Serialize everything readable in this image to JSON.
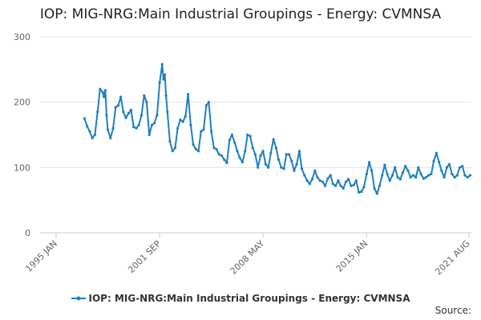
{
  "title": "IOP: MIG-NRG:Main Industrial Groupings - Energy: CVMNSA",
  "source_label": "Source:",
  "colors": {
    "series": "#1f7fbf",
    "grid": "#e6e6e6",
    "axis_text": "#666666"
  },
  "chart_data": {
    "type": "line",
    "title": "IOP: MIG-NRG:Main Industrial Groupings - Energy: CVMNSA",
    "xlabel": "",
    "ylabel": "",
    "ylim": [
      0,
      300
    ],
    "xlim": [
      1995.0,
      2021.75
    ],
    "y_ticks": [
      0,
      100,
      200,
      300
    ],
    "x_ticks": [
      {
        "value": 1995.0,
        "label": "1995 JAN"
      },
      {
        "value": 2001.67,
        "label": "2001 SEP"
      },
      {
        "value": 2008.33,
        "label": "2008 MAY"
      },
      {
        "value": 2015.0,
        "label": "2015 JAN"
      },
      {
        "value": 2021.58,
        "label": "2021 AUG"
      }
    ],
    "grid": true,
    "legend_position": "bottom",
    "series": [
      {
        "name": "IOP: MIG-NRG:Main Industrial Groupings - Energy: CVMNSA",
        "x": [
          1996.83,
          1997.0,
          1997.17,
          1997.33,
          1997.5,
          1997.67,
          1997.83,
          1998.0,
          1998.08,
          1998.17,
          1998.25,
          1998.33,
          1998.5,
          1998.67,
          1998.83,
          1999.0,
          1999.17,
          1999.33,
          1999.5,
          1999.67,
          1999.83,
          2000.0,
          2000.17,
          2000.33,
          2000.5,
          2000.67,
          2000.83,
          2001.0,
          2001.17,
          2001.33,
          2001.5,
          2001.67,
          2001.83,
          2001.92,
          2002.0,
          2002.08,
          2002.17,
          2002.33,
          2002.5,
          2002.67,
          2002.83,
          2003.0,
          2003.17,
          2003.33,
          2003.5,
          2003.67,
          2003.83,
          2004.0,
          2004.17,
          2004.33,
          2004.5,
          2004.67,
          2004.83,
          2005.0,
          2005.17,
          2005.33,
          2005.5,
          2005.67,
          2005.83,
          2006.0,
          2006.17,
          2006.33,
          2006.5,
          2006.67,
          2006.83,
          2007.0,
          2007.17,
          2007.33,
          2007.5,
          2007.67,
          2007.83,
          2008.0,
          2008.17,
          2008.33,
          2008.5,
          2008.67,
          2008.83,
          2009.0,
          2009.17,
          2009.33,
          2009.5,
          2009.67,
          2009.83,
          2010.0,
          2010.17,
          2010.33,
          2010.5,
          2010.67,
          2010.83,
          2011.0,
          2011.17,
          2011.33,
          2011.5,
          2011.67,
          2011.83,
          2012.0,
          2012.17,
          2012.33,
          2012.5,
          2012.67,
          2012.83,
          2013.0,
          2013.17,
          2013.33,
          2013.5,
          2013.67,
          2013.83,
          2014.0,
          2014.17,
          2014.33,
          2014.5,
          2014.67,
          2014.83,
          2015.0,
          2015.17,
          2015.33,
          2015.5,
          2015.67,
          2015.83,
          2016.0,
          2016.17,
          2016.33,
          2016.5,
          2016.67,
          2016.83,
          2017.0,
          2017.17,
          2017.33,
          2017.5,
          2017.67,
          2017.83,
          2018.0,
          2018.17,
          2018.33,
          2018.5,
          2018.67,
          2018.83,
          2019.0,
          2019.17,
          2019.33,
          2019.5,
          2019.67,
          2019.83,
          2020.0,
          2020.17,
          2020.33,
          2020.5,
          2020.67,
          2020.83,
          2021.0,
          2021.17,
          2021.33,
          2021.5,
          2021.67
        ],
        "values": [
          175,
          163,
          155,
          145,
          150,
          185,
          220,
          215,
          208,
          218,
          180,
          158,
          145,
          160,
          192,
          195,
          208,
          185,
          176,
          183,
          188,
          162,
          160,
          165,
          180,
          210,
          200,
          150,
          165,
          168,
          180,
          230,
          258,
          235,
          242,
          210,
          185,
          140,
          125,
          130,
          160,
          173,
          170,
          178,
          212,
          165,
          135,
          128,
          125,
          155,
          158,
          195,
          200,
          155,
          130,
          128,
          120,
          118,
          112,
          107,
          142,
          150,
          138,
          125,
          115,
          108,
          125,
          150,
          148,
          130,
          120,
          100,
          118,
          125,
          105,
          100,
          122,
          143,
          130,
          112,
          100,
          98,
          120,
          120,
          110,
          95,
          105,
          125,
          98,
          88,
          80,
          75,
          82,
          95,
          85,
          80,
          78,
          72,
          83,
          88,
          75,
          72,
          80,
          72,
          68,
          78,
          82,
          72,
          73,
          80,
          62,
          63,
          70,
          90,
          108,
          95,
          68,
          60,
          72,
          88,
          104,
          90,
          80,
          88,
          100,
          85,
          82,
          92,
          102,
          95,
          85,
          88,
          85,
          100,
          90,
          83,
          85,
          88,
          90,
          110,
          122,
          108,
          95,
          85,
          100,
          105,
          90,
          85,
          88,
          100,
          102,
          88,
          85,
          88
        ]
      }
    ]
  }
}
